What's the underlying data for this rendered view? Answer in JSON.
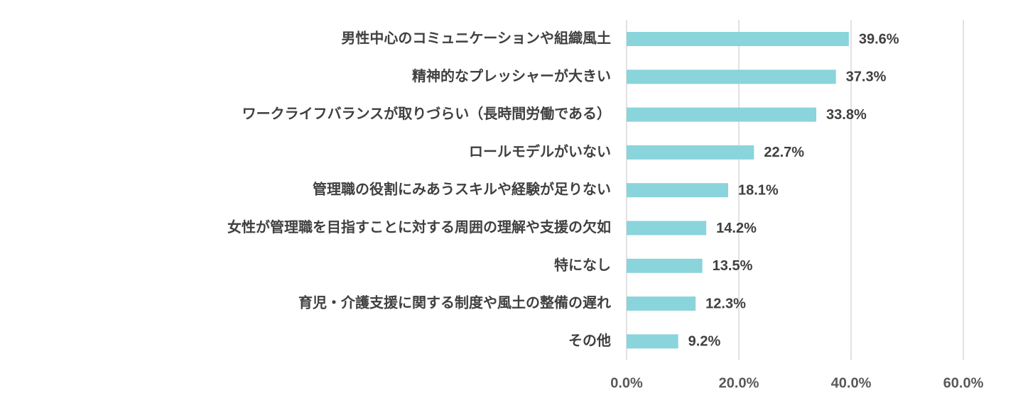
{
  "chart_data": {
    "type": "bar",
    "orientation": "horizontal",
    "title": "",
    "xlabel": "",
    "ylabel": "",
    "categories": [
      "男性中心のコミュニケーションや組織風土",
      "精神的なプレッシャーが大きい",
      "ワークライフバランスが取りづらい（長時間労働である）",
      "ロールモデルがいない",
      "管理職の役割にみあうスキルや経験が足りない",
      "女性が管理職を目指すことに対する周囲の理解や支援の欠如",
      "特になし",
      "育児・介護支援に関する制度や風土の整備の遅れ",
      "その他"
    ],
    "values": [
      39.6,
      37.3,
      33.8,
      22.7,
      18.1,
      14.2,
      13.5,
      12.3,
      9.2
    ],
    "value_labels": [
      "39.6%",
      "37.3%",
      "33.8%",
      "22.7%",
      "18.1%",
      "14.2%",
      "13.5%",
      "12.3%",
      "9.2%"
    ],
    "xlim": [
      0,
      60
    ],
    "x_ticks": [
      0,
      20,
      40,
      60
    ],
    "x_tick_labels": [
      "0.0%",
      "20.0%",
      "40.0%",
      "60.0%"
    ],
    "grid": true,
    "legend": "none",
    "bar_color": "#8ad4dc",
    "text_color": "#404040",
    "tick_color": "#595959",
    "grid_color": "#d9d9d9"
  }
}
